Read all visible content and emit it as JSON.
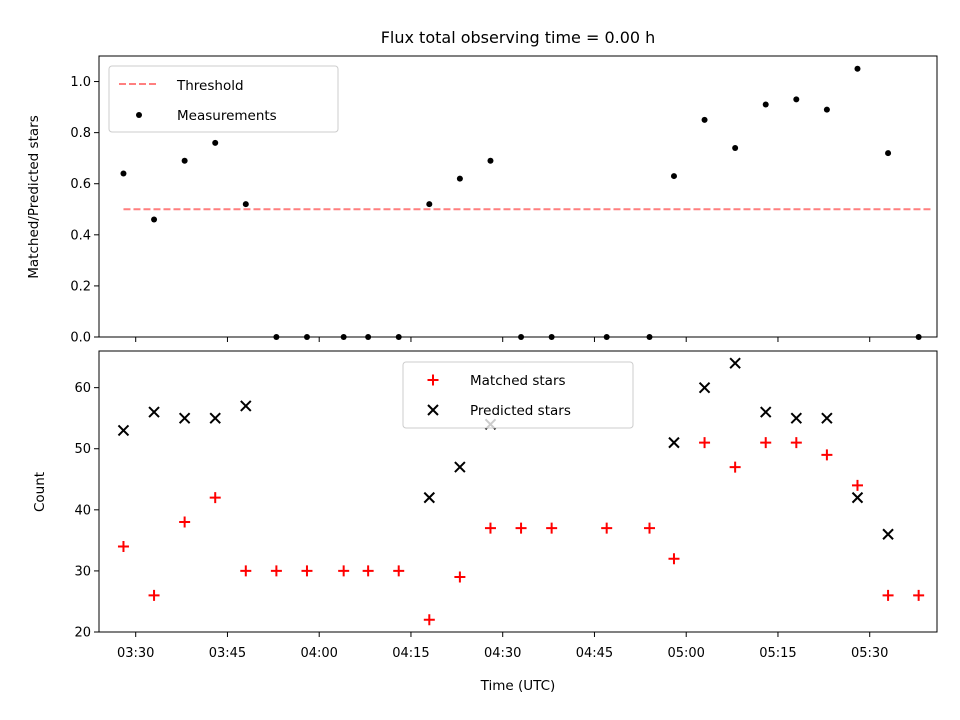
{
  "chart_data": [
    {
      "type": "scatter",
      "title": "Flux total observing time = 0.00 h",
      "xlabel": "",
      "ylabel": "Matched/Predicted stars",
      "ylim": [
        0,
        1.1
      ],
      "yticks": [
        "0.0",
        "0.2",
        "0.4",
        "0.6",
        "0.8",
        "1.0"
      ],
      "legend_position": "upper-left",
      "threshold": {
        "name": "Threshold",
        "value": 0.5,
        "color": "#ff7f7f",
        "style": "dashed",
        "x_start": "03:28",
        "x_end": "05:40"
      },
      "series": [
        {
          "name": "Measurements",
          "color": "#000000",
          "marker": "dot",
          "x": [
            "03:28",
            "03:33",
            "03:38",
            "03:43",
            "03:48",
            "03:53",
            "03:58",
            "04:04",
            "04:08",
            "04:13",
            "04:18",
            "04:23",
            "04:28",
            "04:33",
            "04:38",
            "04:47",
            "04:54",
            "04:58",
            "05:03",
            "05:08",
            "05:13",
            "05:18",
            "05:23",
            "05:28",
            "05:33",
            "05:38"
          ],
          "y": [
            0.64,
            0.46,
            0.69,
            0.76,
            0.52,
            0.0,
            0.0,
            0.0,
            0.0,
            0.0,
            0.52,
            0.62,
            0.69,
            0.0,
            0.0,
            0.0,
            0.0,
            0.63,
            0.85,
            0.74,
            0.91,
            0.93,
            0.89,
            1.05,
            0.72,
            0.0
          ]
        }
      ]
    },
    {
      "type": "scatter",
      "xlabel": "Time (UTC)",
      "ylabel": "Count",
      "ylim": [
        20,
        66
      ],
      "yticks": [
        "20",
        "30",
        "40",
        "50",
        "60"
      ],
      "xlim": [
        "03:24",
        "05:41"
      ],
      "xticks": [
        "03:30",
        "03:45",
        "04:00",
        "04:15",
        "04:30",
        "04:45",
        "05:00",
        "05:15",
        "05:30"
      ],
      "legend_position": "upper-center",
      "series": [
        {
          "name": "Matched stars",
          "color": "#ff0000",
          "marker": "plus",
          "x": [
            "03:28",
            "03:33",
            "03:38",
            "03:43",
            "03:48",
            "03:53",
            "03:58",
            "04:04",
            "04:08",
            "04:13",
            "04:18",
            "04:23",
            "04:28",
            "04:33",
            "04:38",
            "04:47",
            "04:54",
            "04:58",
            "05:03",
            "05:08",
            "05:13",
            "05:18",
            "05:23",
            "05:28",
            "05:33",
            "05:38"
          ],
          "y": [
            34,
            26,
            38,
            42,
            30,
            30,
            30,
            30,
            30,
            30,
            22,
            29,
            37,
            37,
            37,
            37,
            37,
            32,
            51,
            47,
            51,
            51,
            49,
            44,
            26,
            26
          ]
        },
        {
          "name": "Predicted stars",
          "color": "#000000",
          "marker": "x",
          "x": [
            "03:28",
            "03:33",
            "03:38",
            "03:43",
            "03:48",
            "04:18",
            "04:23",
            "04:28",
            "04:58",
            "05:03",
            "05:08",
            "05:13",
            "05:18",
            "05:23",
            "05:28",
            "05:33"
          ],
          "y": [
            53,
            56,
            55,
            55,
            57,
            42,
            47,
            54,
            51,
            60,
            64,
            56,
            55,
            55,
            42,
            36
          ]
        }
      ]
    }
  ]
}
